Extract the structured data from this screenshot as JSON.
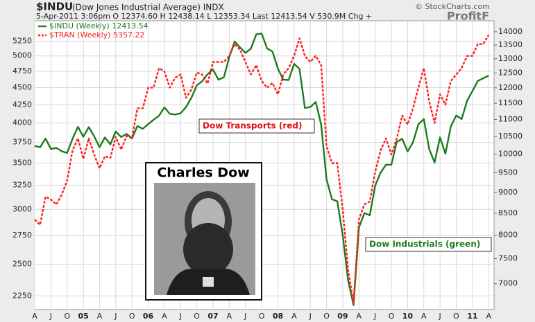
{
  "chart_data": {
    "type": "line",
    "title": "$INDU",
    "subtitle": "(Dow Jones Industrial Average) INDX",
    "quote": "5-Apr-2011 3:06pm  O 12374.60  H 12438.14  L 12353.34  Last 12413.54  V 530.9M  Chg +",
    "source": "© StockCharts.com",
    "watermark": "ProfitF",
    "annotations": [
      "Dow Transports (red)",
      "Dow Industrials (green)",
      "Charles Dow"
    ],
    "x": [
      "2004-04",
      "2004-05",
      "2004-06",
      "2004-07",
      "2004-08",
      "2004-09",
      "2004-10",
      "2004-11",
      "2004-12",
      "2005-01",
      "2005-02",
      "2005-03",
      "2005-04",
      "2005-05",
      "2005-06",
      "2005-07",
      "2005-08",
      "2005-09",
      "2005-10",
      "2005-11",
      "2005-12",
      "2006-01",
      "2006-02",
      "2006-03",
      "2006-04",
      "2006-05",
      "2006-06",
      "2006-07",
      "2006-08",
      "2006-09",
      "2006-10",
      "2006-11",
      "2006-12",
      "2007-01",
      "2007-02",
      "2007-03",
      "2007-04",
      "2007-05",
      "2007-06",
      "2007-07",
      "2007-08",
      "2007-09",
      "2007-10",
      "2007-11",
      "2007-12",
      "2008-01",
      "2008-02",
      "2008-03",
      "2008-04",
      "2008-05",
      "2008-06",
      "2008-07",
      "2008-08",
      "2008-09",
      "2008-10",
      "2008-11",
      "2008-12",
      "2009-01",
      "2009-02",
      "2009-03",
      "2009-04",
      "2009-05",
      "2009-06",
      "2009-07",
      "2009-08",
      "2009-09",
      "2009-10",
      "2009-11",
      "2009-12",
      "2010-01",
      "2010-02",
      "2010-03",
      "2010-04",
      "2010-05",
      "2010-06",
      "2010-07",
      "2010-08",
      "2010-09",
      "2010-10",
      "2010-11",
      "2010-12",
      "2011-01",
      "2011-02",
      "2011-03",
      "2011-04"
    ],
    "series": [
      {
        "name": "$INDU (Weekly) 12413.54",
        "color": "#1e7a1e",
        "dashed": false,
        "axis": "y2",
        "values": [
          10225,
          10190,
          10435,
          10140,
          10170,
          10080,
          10030,
          10430,
          10780,
          10490,
          10770,
          10500,
          10190,
          10470,
          10270,
          10640,
          10480,
          10570,
          10440,
          10800,
          10720,
          10860,
          10990,
          11110,
          11370,
          11170,
          11150,
          11190,
          11380,
          11680,
          12080,
          12220,
          12460,
          12620,
          12270,
          12350,
          13060,
          13630,
          13410,
          13210,
          13360,
          13900,
          13930,
          13370,
          13260,
          12650,
          12270,
          12260,
          12820,
          12640,
          11350,
          11380,
          11540,
          10850,
          9330,
          8830,
          8780,
          8000,
          7060,
          6600,
          8170,
          8500,
          8450,
          9170,
          9500,
          9710,
          9710,
          10340,
          10430,
          10070,
          10330,
          10860,
          11010,
          10140,
          9770,
          10470,
          10010,
          10790,
          11120,
          11010,
          11580,
          11890,
          12230,
          12320,
          12410
        ]
      },
      {
        "name": "$TRAN (Weekly) 5357.22",
        "color": "#ff2020",
        "dashed": true,
        "axis": "y",
        "values": [
          2900,
          2850,
          3130,
          3100,
          3050,
          3150,
          3300,
          3650,
          3800,
          3550,
          3800,
          3600,
          3440,
          3580,
          3560,
          3820,
          3660,
          3830,
          3800,
          4200,
          4200,
          4500,
          4500,
          4800,
          4750,
          4500,
          4650,
          4700,
          4350,
          4470,
          4730,
          4700,
          4560,
          4900,
          4900,
          4900,
          5000,
          5200,
          5100,
          4900,
          4700,
          4850,
          4600,
          4500,
          4570,
          4400,
          4700,
          4800,
          5000,
          5300,
          5000,
          4900,
          5000,
          4850,
          3700,
          3500,
          3500,
          3000,
          2450,
          2200,
          2900,
          3050,
          3080,
          3400,
          3650,
          3800,
          3600,
          3800,
          4100,
          3980,
          4200,
          4500,
          4800,
          4300,
          4000,
          4400,
          4250,
          4600,
          4700,
          4800,
          5000,
          5000,
          5200,
          5200,
          5360
        ]
      }
    ],
    "xlim": [
      "2004-04",
      "2011-05"
    ],
    "xticks": [
      {
        "value": "2004-04",
        "label": "A"
      },
      {
        "value": "2004-07",
        "label": "J"
      },
      {
        "value": "2004-10",
        "label": "O"
      },
      {
        "value": "2005-01",
        "label": "05"
      },
      {
        "value": "2005-04",
        "label": "A"
      },
      {
        "value": "2005-07",
        "label": "J"
      },
      {
        "value": "2005-10",
        "label": "O"
      },
      {
        "value": "2006-01",
        "label": "06"
      },
      {
        "value": "2006-04",
        "label": "A"
      },
      {
        "value": "2006-07",
        "label": "J"
      },
      {
        "value": "2006-10",
        "label": "O"
      },
      {
        "value": "2007-01",
        "label": "07"
      },
      {
        "value": "2007-04",
        "label": "A"
      },
      {
        "value": "2007-07",
        "label": "J"
      },
      {
        "value": "2007-10",
        "label": "O"
      },
      {
        "value": "2008-01",
        "label": "08"
      },
      {
        "value": "2008-04",
        "label": "A"
      },
      {
        "value": "2008-07",
        "label": "J"
      },
      {
        "value": "2008-10",
        "label": "O"
      },
      {
        "value": "2009-01",
        "label": "09"
      },
      {
        "value": "2009-04",
        "label": "A"
      },
      {
        "value": "2009-07",
        "label": "J"
      },
      {
        "value": "2009-10",
        "label": "O"
      },
      {
        "value": "2010-01",
        "label": "10"
      },
      {
        "value": "2010-04",
        "label": "A"
      },
      {
        "value": "2010-07",
        "label": "J"
      },
      {
        "value": "2010-10",
        "label": "O"
      },
      {
        "value": "2011-01",
        "label": "11"
      },
      {
        "value": "2011-04",
        "label": "A"
      }
    ],
    "ylim": [
      2150,
      5620
    ],
    "yticks": [
      2250,
      2500,
      2750,
      3000,
      3250,
      3500,
      3750,
      4000,
      4250,
      4500,
      4750,
      5000,
      5250
    ],
    "y2lim": [
      6520,
      14430
    ],
    "y2ticks": [
      7000,
      7500,
      8000,
      8500,
      9000,
      9500,
      10000,
      10500,
      11000,
      11500,
      12000,
      12500,
      13000,
      13500,
      14000
    ],
    "log_scale": true,
    "grid": true,
    "legend": "upper left"
  }
}
